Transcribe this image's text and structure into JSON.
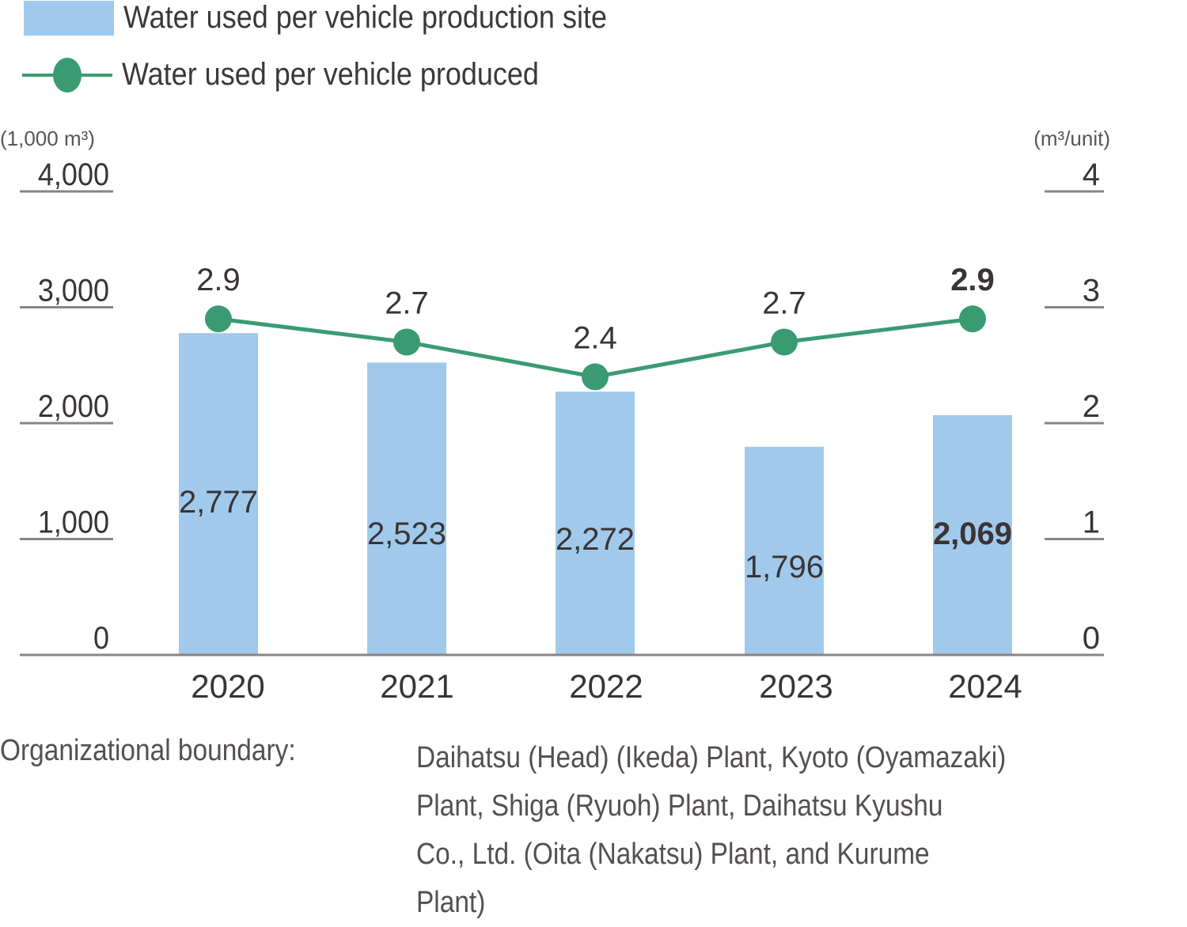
{
  "legend": {
    "bar_label": "Water used per vehicle production site",
    "line_label": "Water used per vehicle produced"
  },
  "colors": {
    "bar": "#a0c9ec",
    "line": "#3a9b72",
    "axis": "#8a8484",
    "text": "#3a3434"
  },
  "chart_data": {
    "type": "bar",
    "title": "",
    "categories": [
      "2020",
      "2021",
      "2022",
      "2023",
      "2024"
    ],
    "series": [
      {
        "name": "Water used per vehicle production site",
        "type": "bar",
        "axis": "left",
        "values": [
          2777,
          2523,
          2272,
          1796,
          2069
        ],
        "labels": [
          "2,777",
          "2,523",
          "2,272",
          "1,796",
          "2,069"
        ]
      },
      {
        "name": "Water used per vehicle produced",
        "type": "line",
        "axis": "right",
        "values": [
          2.9,
          2.7,
          2.4,
          2.7,
          2.9
        ],
        "labels": [
          "2.9",
          "2.7",
          "2.4",
          "2.7",
          "2.9"
        ]
      }
    ],
    "y_left": {
      "unit_label": "(1,000 m³)",
      "ylim": [
        0,
        4000
      ],
      "ticks": [
        0,
        1000,
        2000,
        3000,
        4000
      ],
      "tick_labels": [
        "0",
        "1,000",
        "2,000",
        "3,000",
        "4,000"
      ]
    },
    "y_right": {
      "unit_label": "(m³/unit)",
      "ylim": [
        0,
        4
      ],
      "ticks": [
        0,
        1,
        2,
        3,
        4
      ],
      "tick_labels": [
        "0",
        "1",
        "2",
        "3",
        "4"
      ]
    },
    "xlabel": "",
    "grid": false,
    "legend_position": "top-left"
  },
  "note": {
    "label": "Organizational boundary:",
    "lines": [
      "Daihatsu (Head) (Ikeda) Plant, Kyoto (Oyamazaki)",
      "Plant, Shiga (Ryuoh) Plant, Daihatsu Kyushu",
      "Co., Ltd. (Oita (Nakatsu) Plant, and Kurume",
      "Plant)"
    ]
  }
}
